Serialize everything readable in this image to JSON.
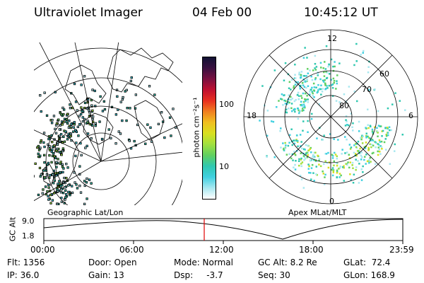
{
  "header": {
    "instrument": "Ultraviolet Imager",
    "date": "04 Feb 00",
    "time": "10:45:12 UT"
  },
  "colorbar": {
    "unit_label": "photon cm⁻²s⁻¹",
    "ticks": [
      "100",
      "10"
    ],
    "colors": [
      "#111133",
      "#3a1040",
      "#7a1040",
      "#c01030",
      "#e83020",
      "#f08020",
      "#f0c020",
      "#d8e020",
      "#a0e040",
      "#60d060",
      "#30c8b0",
      "#40d0e0",
      "#a8e8f0",
      "#ffffff"
    ]
  },
  "left_map": {
    "label": "Geographic Lat/Lon"
  },
  "right_map": {
    "label": "Apex  MLat/MLT",
    "mlt_labels": {
      "top": "12",
      "left": "18",
      "right": "6",
      "bottom": "0"
    },
    "lat_labels": [
      "60",
      "70",
      "80"
    ]
  },
  "altitude_plot": {
    "ylabel": "GC Alt",
    "yticks": [
      "9.0",
      "1.8"
    ],
    "xticks": [
      "00:00",
      "06:00",
      "12:00",
      "18:00",
      "23:59"
    ],
    "current_marker_color": "#e00000"
  },
  "status": {
    "flt": "Flt: 1356",
    "ip": "IP: 36.0",
    "door": "Door: Open",
    "gain": "Gain: 13",
    "mode": "Mode: Normal",
    "dsp": "Dsp:     -3.7",
    "gc_alt": "GC Alt: 8.2 Re",
    "seq": "Seq: 30",
    "glat": "GLat:  72.4",
    "glon": "GLon: 168.9"
  }
}
